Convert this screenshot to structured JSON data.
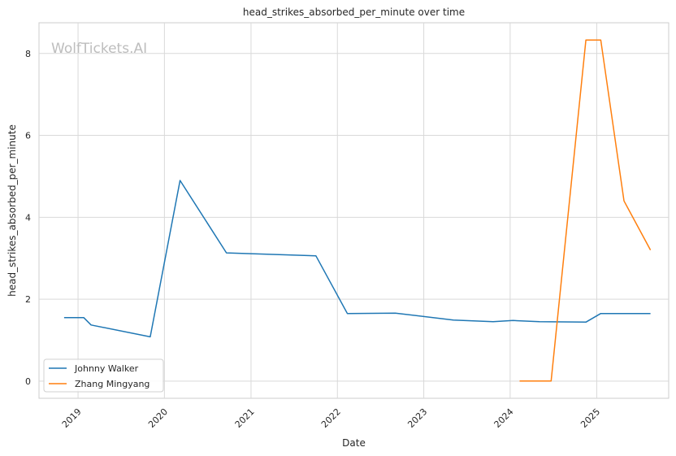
{
  "chart_data": {
    "type": "line",
    "title": "head_strikes_absorbed_per_minute over time",
    "xlabel": "Date",
    "ylabel": "head_strikes_absorbed_per_minute",
    "watermark": "WolfTickets.AI",
    "x_ticks": [
      "2019",
      "2020",
      "2021",
      "2022",
      "2023",
      "2024",
      "2025"
    ],
    "y_ticks": [
      0,
      2,
      4,
      6,
      8
    ],
    "ylim": [
      -0.42,
      8.75
    ],
    "xlim": [
      "2018-07-20",
      "2025-11-01"
    ],
    "grid": true,
    "legend_position": "lower-left",
    "series": [
      {
        "name": "Johnny Walker",
        "color": "#1f77b4",
        "points": [
          {
            "x": "2018-11-03",
            "y": 1.55
          },
          {
            "x": "2019-01-25",
            "y": 1.55
          },
          {
            "x": "2019-02-25",
            "y": 1.37
          },
          {
            "x": "2019-11-02",
            "y": 1.08
          },
          {
            "x": "2020-03-07",
            "y": 4.9
          },
          {
            "x": "2020-09-19",
            "y": 3.13
          },
          {
            "x": "2021-10-02",
            "y": 3.06
          },
          {
            "x": "2022-02-12",
            "y": 1.65
          },
          {
            "x": "2022-09-03",
            "y": 1.66
          },
          {
            "x": "2023-05-06",
            "y": 1.49
          },
          {
            "x": "2023-10-21",
            "y": 1.45
          },
          {
            "x": "2024-01-13",
            "y": 1.48
          },
          {
            "x": "2024-05-04",
            "y": 1.45
          },
          {
            "x": "2024-11-16",
            "y": 1.44
          },
          {
            "x": "2025-01-18",
            "y": 1.65
          },
          {
            "x": "2025-08-16",
            "y": 1.65
          }
        ]
      },
      {
        "name": "Zhang Mingyang",
        "color": "#ff7f0e",
        "points": [
          {
            "x": "2024-02-10",
            "y": 0.0
          },
          {
            "x": "2024-06-22",
            "y": 0.0
          },
          {
            "x": "2024-11-16",
            "y": 8.33
          },
          {
            "x": "2025-01-18",
            "y": 8.33
          },
          {
            "x": "2025-04-26",
            "y": 4.4
          },
          {
            "x": "2025-08-16",
            "y": 3.2
          }
        ]
      }
    ]
  }
}
